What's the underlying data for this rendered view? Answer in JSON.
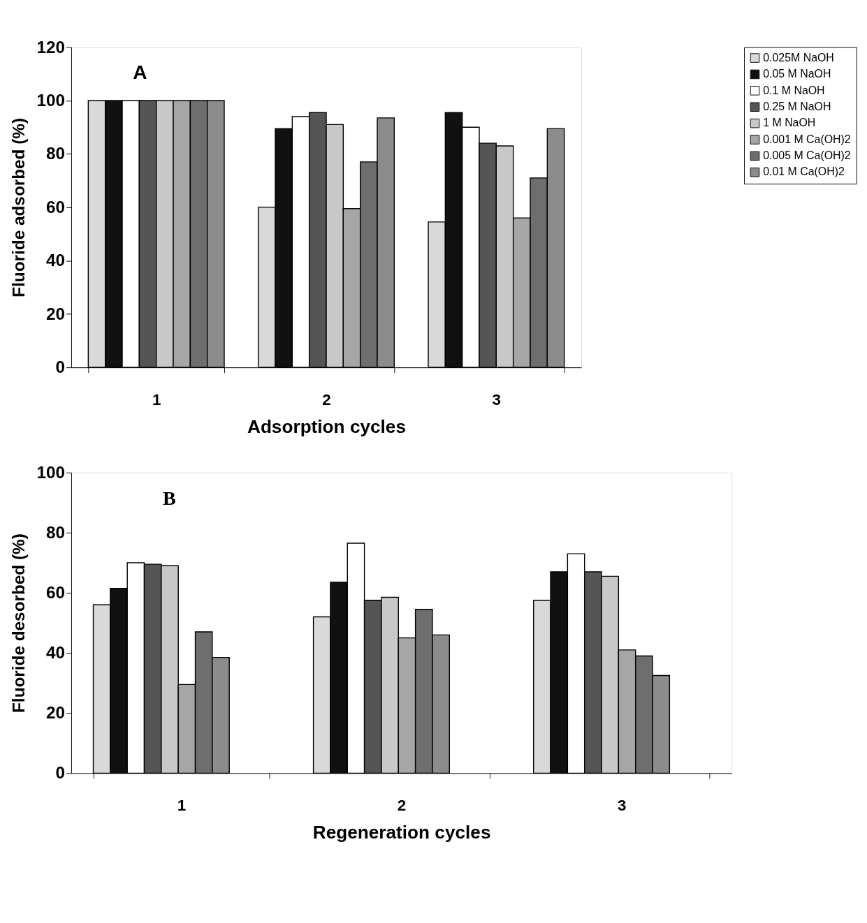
{
  "chart_data": [
    {
      "type": "bar",
      "xlabel": "Adsorption cycles",
      "ylabel": "Fluoride adsorbed (%)",
      "annotations": [
        "A"
      ],
      "categories": [
        "1",
        "2",
        "3"
      ],
      "ylim": [
        0,
        120
      ],
      "yticks": [
        0,
        20,
        40,
        60,
        80,
        100,
        120
      ],
      "grid": false,
      "legend": "right",
      "series": [
        {
          "name": "0.025M NaOH",
          "color": "#d9d9d9",
          "values": [
            100,
            60,
            54.5
          ]
        },
        {
          "name": "0.05 M NaOH",
          "color": "#111111",
          "values": [
            100,
            89.5,
            95.5
          ]
        },
        {
          "name": "0.1 M NaOH",
          "color": "#ffffff",
          "values": [
            100,
            94,
            90
          ]
        },
        {
          "name": "0.25 M NaOH",
          "color": "#555555",
          "values": [
            100,
            95.5,
            84
          ]
        },
        {
          "name": "1 M NaOH",
          "color": "#c8c8c8",
          "values": [
            100,
            91,
            83
          ]
        },
        {
          "name": "0.001 M Ca(OH)2",
          "color": "#a6a6a6",
          "values": [
            100,
            59.5,
            56
          ]
        },
        {
          "name": "0.005 M Ca(OH)2",
          "color": "#6e6e6e",
          "values": [
            100,
            77,
            71
          ]
        },
        {
          "name": "0.01 M Ca(OH)2",
          "color": "#8c8c8c",
          "values": [
            100,
            93.5,
            89.5
          ]
        }
      ]
    },
    {
      "type": "bar",
      "xlabel": "Regeneration cycles",
      "ylabel": "Fluoride desorbed (%)",
      "annotations": [
        "B"
      ],
      "categories": [
        "1",
        "2",
        "3"
      ],
      "ylim": [
        0,
        100
      ],
      "yticks": [
        0,
        20,
        40,
        60,
        80,
        100
      ],
      "grid": false,
      "legend": false,
      "series": [
        {
          "color": "#d9d9d9",
          "values": [
            56,
            52,
            57.5
          ]
        },
        {
          "color": "#111111",
          "values": [
            61.5,
            63.5,
            67
          ]
        },
        {
          "color": "#ffffff",
          "values": [
            70,
            76.5,
            73
          ]
        },
        {
          "color": "#555555",
          "values": [
            69.5,
            57.5,
            67
          ]
        },
        {
          "color": "#c8c8c8",
          "values": [
            69,
            58.5,
            65.5
          ]
        },
        {
          "color": "#a6a6a6",
          "values": [
            29.5,
            45,
            41
          ]
        },
        {
          "color": "#6e6e6e",
          "values": [
            47,
            54.5,
            39
          ]
        },
        {
          "color": "#8c8c8c",
          "values": [
            38.5,
            46,
            32.5
          ]
        }
      ]
    }
  ]
}
